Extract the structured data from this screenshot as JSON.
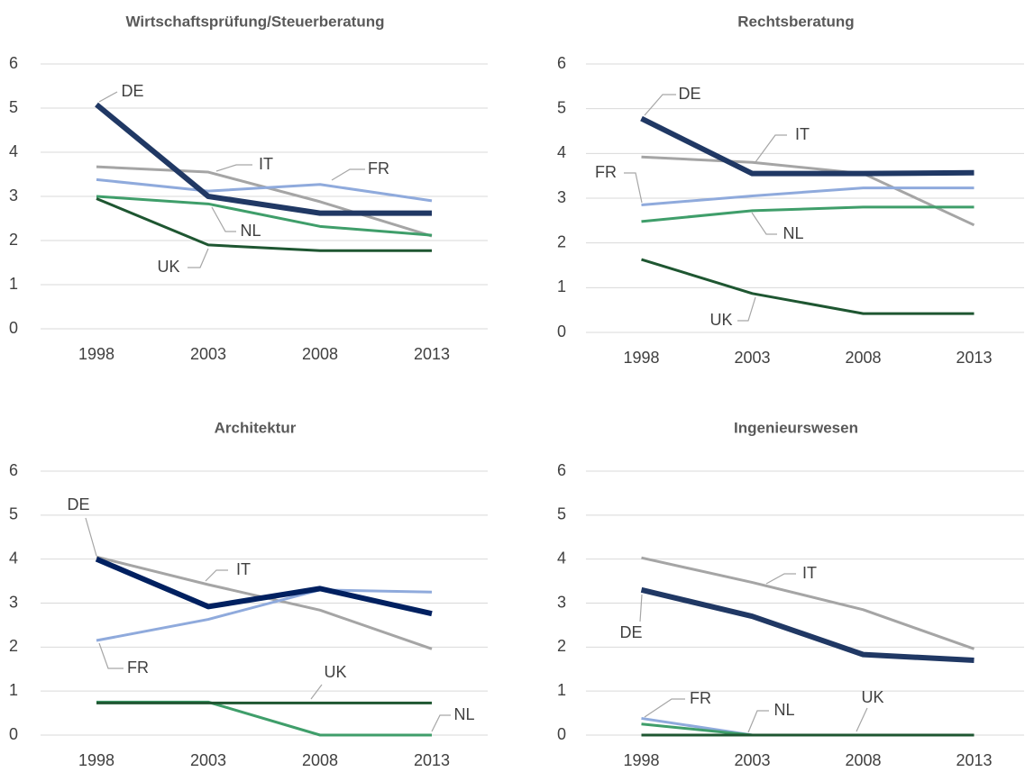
{
  "chart_data": [
    {
      "type": "line",
      "title": "Wirtschaftsprüfung/Steuerberatung",
      "categories": [
        "1998",
        "2003",
        "2008",
        "2013"
      ],
      "ylim": [
        0,
        6
      ],
      "yticks": [
        0,
        1,
        2,
        3,
        4,
        5,
        6
      ],
      "grid": true,
      "series": [
        {
          "name": "DE",
          "color": "#203864",
          "values": [
            5.08,
            3.0,
            2.62,
            2.62
          ]
        },
        {
          "name": "IT",
          "color": "#a5a5a5",
          "values": [
            3.67,
            3.55,
            2.88,
            2.1
          ]
        },
        {
          "name": "FR",
          "color": "#8faadc",
          "values": [
            3.38,
            3.12,
            3.27,
            2.9
          ]
        },
        {
          "name": "NL",
          "color": "#3f9e6a",
          "values": [
            3.0,
            2.83,
            2.32,
            2.12
          ]
        },
        {
          "name": "UK",
          "color": "#1e5631",
          "values": [
            2.95,
            1.9,
            1.77,
            1.77
          ]
        }
      ]
    },
    {
      "type": "line",
      "title": "Rechtsberatung",
      "categories": [
        "1998",
        "2003",
        "2008",
        "2013"
      ],
      "ylim": [
        0,
        6
      ],
      "yticks": [
        0,
        1,
        2,
        3,
        4,
        5,
        6
      ],
      "grid": true,
      "series": [
        {
          "name": "DE",
          "color": "#203864",
          "values": [
            4.78,
            3.55,
            3.55,
            3.57
          ]
        },
        {
          "name": "IT",
          "color": "#a5a5a5",
          "values": [
            3.92,
            3.8,
            3.55,
            2.4
          ]
        },
        {
          "name": "FR",
          "color": "#8faadc",
          "values": [
            2.85,
            3.05,
            3.23,
            3.23
          ]
        },
        {
          "name": "NL",
          "color": "#3f9e6a",
          "values": [
            2.48,
            2.72,
            2.8,
            2.8
          ]
        },
        {
          "name": "UK",
          "color": "#1e5631",
          "values": [
            1.63,
            0.87,
            0.42,
            0.42
          ]
        }
      ]
    },
    {
      "type": "line",
      "title": "Architektur",
      "categories": [
        "1998",
        "2003",
        "2008",
        "2013"
      ],
      "ylim": [
        0,
        6
      ],
      "yticks": [
        0,
        1,
        2,
        3,
        4,
        5,
        6
      ],
      "grid": true,
      "series": [
        {
          "name": "DE",
          "color": "#002060",
          "values": [
            4.0,
            2.92,
            3.33,
            2.76
          ]
        },
        {
          "name": "IT",
          "color": "#a5a5a5",
          "values": [
            4.05,
            3.42,
            2.84,
            1.96
          ]
        },
        {
          "name": "FR",
          "color": "#8faadc",
          "values": [
            2.15,
            2.63,
            3.3,
            3.25
          ]
        },
        {
          "name": "NL",
          "color": "#3f9e6a",
          "values": [
            0.75,
            0.75,
            0.0,
            0.0
          ]
        },
        {
          "name": "UK",
          "color": "#1e5631",
          "values": [
            0.73,
            0.73,
            0.73,
            0.73
          ]
        }
      ]
    },
    {
      "type": "line",
      "title": "Ingenieurswesen",
      "categories": [
        "1998",
        "2003",
        "2008",
        "2013"
      ],
      "ylim": [
        0,
        6
      ],
      "yticks": [
        0,
        1,
        2,
        3,
        4,
        5,
        6
      ],
      "grid": true,
      "series": [
        {
          "name": "DE",
          "color": "#203864",
          "values": [
            3.3,
            2.7,
            1.83,
            1.7
          ]
        },
        {
          "name": "IT",
          "color": "#a5a5a5",
          "values": [
            4.03,
            3.47,
            2.85,
            1.96
          ]
        },
        {
          "name": "FR",
          "color": "#8faadc",
          "values": [
            0.38,
            0.0,
            0.0,
            0.0
          ]
        },
        {
          "name": "NL",
          "color": "#3f9e6a",
          "values": [
            0.25,
            0.0,
            0.0,
            0.0
          ]
        },
        {
          "name": "UK",
          "color": "#1e5631",
          "values": [
            0,
            0,
            0,
            0
          ]
        }
      ]
    }
  ]
}
